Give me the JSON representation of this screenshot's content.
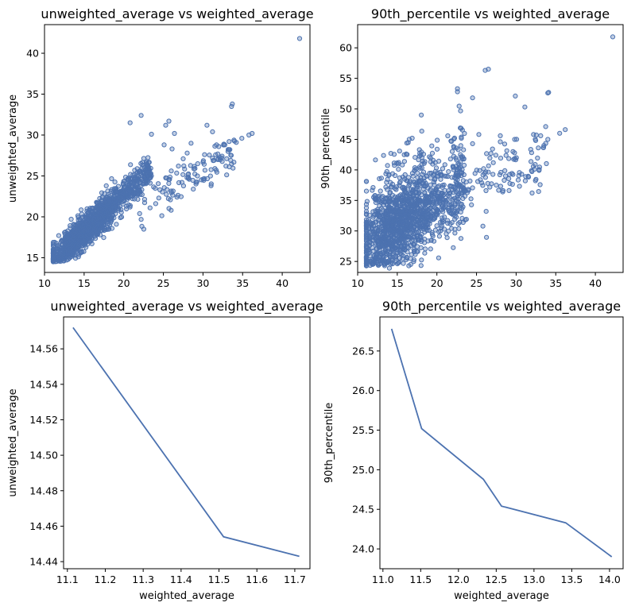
{
  "colors": {
    "series": "#4c72b0",
    "axes": "#000000",
    "background": "#ffffff"
  },
  "chart_data": [
    {
      "type": "scatter",
      "title": "unweighted_average vs weighted_average",
      "xlabel": "",
      "ylabel": "unweighted_average",
      "xlim": [
        10,
        43.5
      ],
      "ylim": [
        13.2,
        43.5
      ],
      "xticks": [
        10,
        15,
        20,
        25,
        30,
        35,
        40
      ],
      "yticks": [
        15,
        20,
        25,
        30,
        35,
        40
      ],
      "grid": false,
      "marker": "hollow-circle",
      "outliers": [
        [
          42.2,
          41.8
        ],
        [
          33.7,
          33.8
        ],
        [
          33.6,
          33.5
        ],
        [
          36.2,
          30.2
        ],
        [
          35.8,
          30.0
        ],
        [
          34.2,
          29.1
        ],
        [
          30.5,
          31.2
        ],
        [
          31.2,
          30.4
        ],
        [
          25.7,
          31.7
        ],
        [
          25.3,
          31.2
        ],
        [
          22.2,
          32.4
        ],
        [
          20.8,
          31.5
        ],
        [
          26.4,
          30.2
        ],
        [
          28.5,
          29.0
        ],
        [
          23.5,
          30.1
        ],
        [
          33.5,
          26.9
        ],
        [
          32.9,
          26.2
        ],
        [
          31.5,
          25.9
        ],
        [
          29.3,
          25.0
        ],
        [
          28.0,
          27.8
        ],
        [
          26.9,
          26.2
        ],
        [
          27.5,
          27.1
        ],
        [
          30.2,
          27.6
        ],
        [
          33.3,
          29.2
        ],
        [
          31.7,
          28.8
        ],
        [
          34.9,
          29.6
        ],
        [
          26.1,
          28.3
        ],
        [
          25.1,
          28.8
        ]
      ]
    },
    {
      "type": "scatter",
      "title": "90th_percentile vs weighted_average",
      "xlabel": "",
      "ylabel": "90th_percentile",
      "xlim": [
        10,
        43.5
      ],
      "ylim": [
        23.2,
        63.8
      ],
      "xticks": [
        10,
        15,
        20,
        25,
        30,
        35,
        40
      ],
      "yticks": [
        25,
        30,
        35,
        40,
        45,
        50,
        55,
        60
      ],
      "grid": false,
      "marker": "hollow-circle",
      "outliers": [
        [
          42.2,
          61.8
        ],
        [
          26.1,
          56.3
        ],
        [
          26.5,
          56.5
        ],
        [
          22.6,
          53.3
        ],
        [
          22.6,
          52.8
        ],
        [
          24.5,
          51.8
        ],
        [
          34.1,
          52.7
        ],
        [
          34.0,
          52.6
        ],
        [
          29.9,
          52.1
        ],
        [
          31.1,
          50.3
        ],
        [
          36.2,
          46.6
        ],
        [
          35.5,
          46.0
        ],
        [
          34.0,
          45.0
        ],
        [
          33.1,
          45.6
        ],
        [
          32.2,
          45.8
        ],
        [
          28.0,
          45.6
        ],
        [
          28.0,
          44.6
        ],
        [
          32.8,
          43.6
        ],
        [
          33.5,
          44.0
        ],
        [
          29.6,
          43.0
        ],
        [
          29.8,
          42.8
        ],
        [
          25.3,
          45.8
        ],
        [
          24.5,
          44.3
        ],
        [
          22.5,
          41.6
        ],
        [
          25.9,
          40.2
        ],
        [
          25.4,
          39.9
        ],
        [
          30.7,
          39.3
        ],
        [
          31.2,
          38.9
        ],
        [
          28.5,
          38.3
        ],
        [
          27.5,
          37.5
        ],
        [
          26.2,
          36.6
        ],
        [
          28.3,
          36.4
        ],
        [
          23.3,
          37.5
        ],
        [
          12.0,
          25.0
        ],
        [
          11.1,
          26.8
        ],
        [
          14.0,
          23.9
        ],
        [
          13.4,
          24.3
        ]
      ]
    },
    {
      "type": "line",
      "title": "unweighted_average vs weighted_average",
      "xlabel": "weighted_average",
      "ylabel": "unweighted_average",
      "xlim": [
        11.09,
        11.74
      ],
      "ylim": [
        14.436,
        14.578
      ],
      "xticks": [
        11.1,
        11.2,
        11.3,
        11.4,
        11.5,
        11.6,
        11.7
      ],
      "yticks": [
        14.44,
        14.46,
        14.48,
        14.5,
        14.52,
        14.54,
        14.56
      ],
      "grid": false,
      "x": [
        11.115,
        11.512,
        11.712
      ],
      "y": [
        14.572,
        14.454,
        14.443
      ]
    },
    {
      "type": "line",
      "title": "90th_percentile vs weighted_average",
      "xlabel": "weighted_average",
      "ylabel": "90th_percentile",
      "xlim": [
        10.96,
        14.18
      ],
      "ylim": [
        23.75,
        26.93
      ],
      "xticks": [
        11.0,
        11.5,
        12.0,
        12.5,
        13.0,
        13.5,
        14.0
      ],
      "yticks": [
        24.0,
        24.5,
        25.0,
        25.5,
        26.0,
        26.5
      ],
      "grid": false,
      "x": [
        11.115,
        11.512,
        12.33,
        12.57,
        13.42,
        14.03
      ],
      "y": [
        26.78,
        25.52,
        24.88,
        24.54,
        24.33,
        23.9
      ]
    }
  ]
}
